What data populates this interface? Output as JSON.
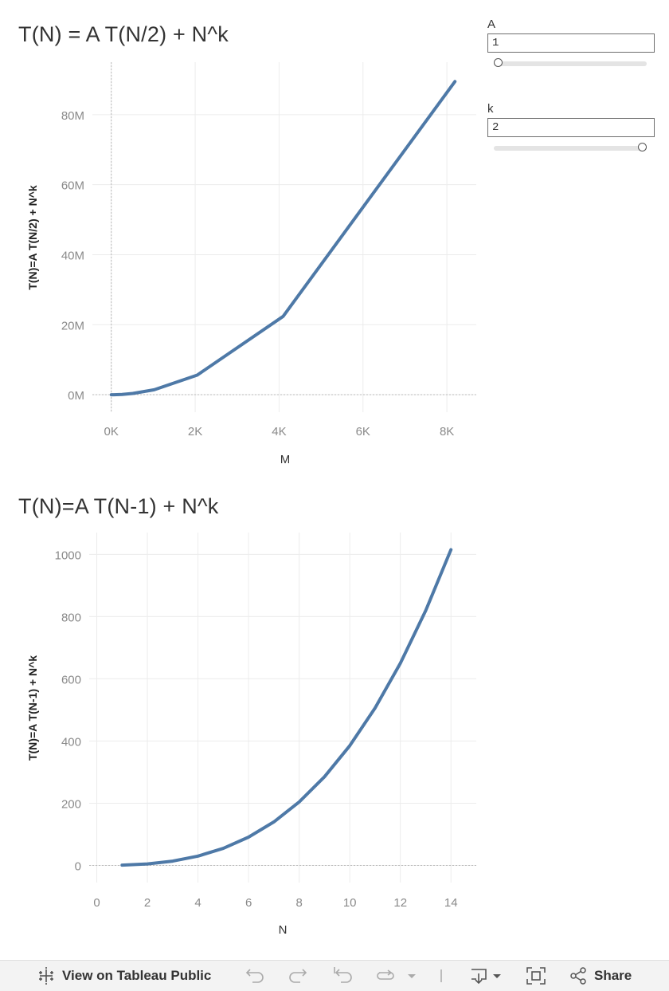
{
  "charts": {
    "top": {
      "title": "T(N) = A T(N/2) + N^k"
    },
    "bottom": {
      "title": "T(N)=A T(N-1) + N^k"
    }
  },
  "chart_data": [
    {
      "type": "line",
      "title": "T(N) = A T(N/2) + N^k",
      "xlabel": "M",
      "ylabel": "T(N)=A T(N/2) + N^k",
      "x": [
        1,
        2,
        4,
        8,
        16,
        32,
        64,
        128,
        256,
        512,
        1024,
        2048,
        4096,
        8192
      ],
      "y": [
        0,
        0,
        0,
        0,
        0,
        0,
        0,
        20000,
        90000,
        350000,
        1400000,
        5600000,
        22370000,
        89470000
      ],
      "xlim": [
        -450,
        8700
      ],
      "ylim": [
        -5000000,
        95000000
      ],
      "xticks": [
        0,
        2000,
        4000,
        6000,
        8000
      ],
      "xtick_labels": [
        "0K",
        "2K",
        "4K",
        "6K",
        "8K"
      ],
      "yticks": [
        0,
        20000000,
        40000000,
        60000000,
        80000000
      ],
      "ytick_labels": [
        "0M",
        "20M",
        "40M",
        "60M",
        "80M"
      ],
      "grid": true,
      "color": "#4e79a7"
    },
    {
      "type": "line",
      "title": "T(N)=A T(N-1) + N^k",
      "xlabel": "N",
      "ylabel": "T(N)=A T(N-1) + N^k",
      "x": [
        1,
        2,
        3,
        4,
        5,
        6,
        7,
        8,
        9,
        10,
        11,
        12,
        13,
        14
      ],
      "y": [
        1,
        5,
        14,
        30,
        55,
        91,
        140,
        204,
        285,
        385,
        506,
        650,
        819,
        1015
      ],
      "xlim": [
        -0.3,
        15
      ],
      "ylim": [
        -55,
        1070
      ],
      "xticks": [
        0,
        2,
        4,
        6,
        8,
        10,
        12,
        14
      ],
      "xtick_labels": [
        "0",
        "2",
        "4",
        "6",
        "8",
        "10",
        "12",
        "14"
      ],
      "yticks": [
        0,
        200,
        400,
        600,
        800,
        1000
      ],
      "ytick_labels": [
        "0",
        "200",
        "400",
        "600",
        "800",
        "1000"
      ],
      "grid": true,
      "color": "#4e79a7"
    }
  ],
  "parameters": {
    "a": {
      "label": "A",
      "value": "1",
      "slider_fraction": 0
    },
    "k": {
      "label": "k",
      "value": "2",
      "slider_fraction": 1
    }
  },
  "toolbar": {
    "view_label": "View on Tableau Public",
    "share_label": "Share",
    "icons": [
      "tableau-logo-icon",
      "undo-icon",
      "redo-icon",
      "revert-icon",
      "refresh-icon",
      "pause-icon",
      "download-icon",
      "fullscreen-icon",
      "share-icon"
    ]
  }
}
